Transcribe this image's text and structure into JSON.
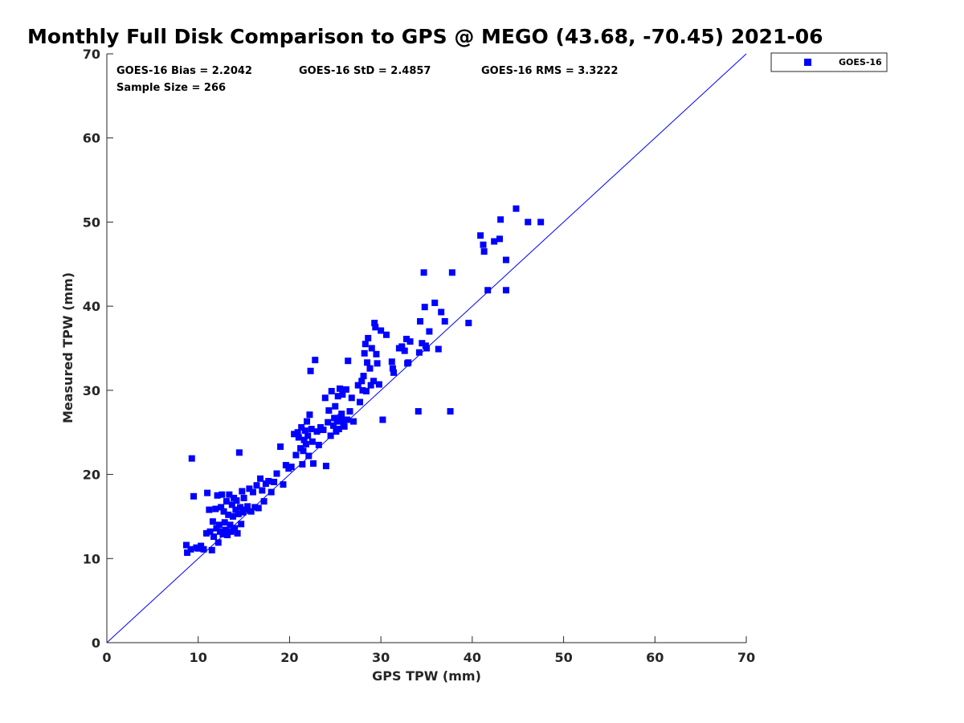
{
  "chart_data": {
    "type": "scatter",
    "title": "Monthly Full Disk Comparison to GPS @ MEGO (43.68, -70.45) 2021-06",
    "xlabel": "GPS TPW (mm)",
    "ylabel": "Measured TPW (mm)",
    "xlim": [
      0,
      70
    ],
    "ylim": [
      0,
      70
    ],
    "xticks": [
      0,
      10,
      20,
      30,
      40,
      50,
      60,
      70
    ],
    "yticks": [
      0,
      10,
      20,
      30,
      40,
      50,
      60,
      70
    ],
    "grid": false,
    "legend_position": "outside-top-right",
    "reference_line": {
      "type": "one-to-one",
      "color": "#0000ff"
    },
    "stats": {
      "bias": "GOES-16 Bias = 2.2042",
      "std": "GOES-16 StD = 2.4857",
      "rms": "GOES-16 RMS = 3.3222",
      "sample": "Sample Size = 266"
    },
    "series": [
      {
        "name": "GOES-16",
        "color": "#0000ff",
        "marker": "square",
        "points": [
          [
            8.7,
            11.6
          ],
          [
            8.8,
            10.7
          ],
          [
            9.2,
            11.1
          ],
          [
            9.3,
            21.9
          ],
          [
            9.5,
            17.4
          ],
          [
            9.8,
            11.3
          ],
          [
            10.0,
            11.2
          ],
          [
            10.3,
            11.5
          ],
          [
            10.6,
            11.1
          ],
          [
            10.9,
            13.0
          ],
          [
            11.0,
            17.8
          ],
          [
            11.2,
            15.8
          ],
          [
            11.3,
            13.2
          ],
          [
            11.5,
            11.0
          ],
          [
            11.6,
            14.4
          ],
          [
            11.7,
            12.6
          ],
          [
            11.9,
            15.9
          ],
          [
            12.0,
            13.6
          ],
          [
            12.1,
            17.5
          ],
          [
            12.2,
            11.9
          ],
          [
            12.3,
            14.0
          ],
          [
            12.4,
            13.2
          ],
          [
            12.5,
            16.1
          ],
          [
            12.6,
            17.6
          ],
          [
            12.7,
            12.9
          ],
          [
            12.8,
            15.6
          ],
          [
            12.9,
            14.3
          ],
          [
            13.0,
            13.4
          ],
          [
            13.1,
            16.8
          ],
          [
            13.2,
            12.8
          ],
          [
            13.3,
            15.2
          ],
          [
            13.4,
            17.6
          ],
          [
            13.5,
            14.0
          ],
          [
            13.6,
            13.2
          ],
          [
            13.7,
            16.4
          ],
          [
            13.8,
            15.0
          ],
          [
            13.9,
            17.2
          ],
          [
            14.0,
            13.6
          ],
          [
            14.1,
            15.8
          ],
          [
            14.2,
            16.9
          ],
          [
            14.3,
            13.0
          ],
          [
            14.4,
            15.3
          ],
          [
            14.5,
            22.6
          ],
          [
            14.6,
            16.1
          ],
          [
            14.7,
            14.1
          ],
          [
            14.8,
            18.0
          ],
          [
            14.9,
            15.5
          ],
          [
            15.0,
            17.2
          ],
          [
            15.2,
            15.8
          ],
          [
            15.4,
            16.2
          ],
          [
            15.6,
            18.3
          ],
          [
            15.8,
            15.6
          ],
          [
            16.0,
            17.9
          ],
          [
            16.2,
            16.1
          ],
          [
            16.4,
            18.7
          ],
          [
            16.6,
            16.0
          ],
          [
            16.8,
            19.5
          ],
          [
            17.0,
            18.1
          ],
          [
            17.2,
            16.8
          ],
          [
            17.4,
            18.9
          ],
          [
            17.7,
            19.2
          ],
          [
            18.0,
            17.9
          ],
          [
            18.3,
            19.1
          ],
          [
            18.6,
            20.1
          ],
          [
            19.0,
            23.3
          ],
          [
            19.3,
            18.8
          ],
          [
            19.6,
            21.1
          ],
          [
            19.9,
            20.7
          ],
          [
            20.2,
            20.9
          ],
          [
            20.5,
            24.8
          ],
          [
            20.7,
            22.3
          ],
          [
            20.9,
            25.0
          ],
          [
            21.0,
            24.4
          ],
          [
            21.2,
            23.1
          ],
          [
            21.3,
            25.6
          ],
          [
            21.4,
            21.2
          ],
          [
            21.5,
            22.8
          ],
          [
            21.6,
            24.1
          ],
          [
            21.7,
            25.2
          ],
          [
            21.8,
            23.6
          ],
          [
            21.9,
            26.3
          ],
          [
            22.0,
            24.6
          ],
          [
            22.1,
            22.2
          ],
          [
            22.2,
            27.1
          ],
          [
            22.3,
            32.3
          ],
          [
            22.4,
            25.4
          ],
          [
            22.5,
            23.9
          ],
          [
            22.6,
            21.3
          ],
          [
            22.8,
            33.6
          ],
          [
            23.0,
            25.1
          ],
          [
            23.2,
            23.5
          ],
          [
            23.4,
            25.6
          ],
          [
            23.7,
            25.3
          ],
          [
            23.9,
            29.1
          ],
          [
            24.0,
            21.0
          ],
          [
            24.2,
            26.2
          ],
          [
            24.3,
            27.6
          ],
          [
            24.5,
            24.6
          ],
          [
            24.6,
            29.9
          ],
          [
            24.8,
            25.8
          ],
          [
            24.9,
            26.7
          ],
          [
            25.0,
            28.1
          ],
          [
            25.1,
            25.1
          ],
          [
            25.2,
            26.3
          ],
          [
            25.3,
            29.3
          ],
          [
            25.4,
            25.4
          ],
          [
            25.5,
            30.2
          ],
          [
            25.6,
            26.8
          ],
          [
            25.7,
            27.2
          ],
          [
            25.8,
            29.5
          ],
          [
            25.9,
            26.1
          ],
          [
            26.0,
            25.7
          ],
          [
            26.2,
            30.1
          ],
          [
            26.3,
            26.5
          ],
          [
            26.4,
            33.5
          ],
          [
            26.6,
            27.5
          ],
          [
            26.8,
            29.1
          ],
          [
            27.0,
            26.3
          ],
          [
            27.5,
            30.6
          ],
          [
            27.7,
            28.6
          ],
          [
            27.9,
            31.1
          ],
          [
            28.0,
            30.0
          ],
          [
            28.1,
            31.7
          ],
          [
            28.2,
            34.4
          ],
          [
            28.3,
            35.5
          ],
          [
            28.4,
            29.9
          ],
          [
            28.5,
            33.3
          ],
          [
            28.6,
            36.2
          ],
          [
            28.8,
            32.6
          ],
          [
            28.9,
            30.6
          ],
          [
            29.0,
            35.0
          ],
          [
            29.2,
            31.1
          ],
          [
            29.3,
            38.0
          ],
          [
            29.4,
            37.5
          ],
          [
            29.5,
            34.3
          ],
          [
            29.6,
            33.2
          ],
          [
            29.8,
            30.7
          ],
          [
            30.0,
            37.1
          ],
          [
            30.2,
            26.5
          ],
          [
            30.6,
            36.6
          ],
          [
            31.2,
            33.4
          ],
          [
            31.3,
            32.6
          ],
          [
            31.4,
            32.1
          ],
          [
            32.0,
            35.0
          ],
          [
            32.3,
            35.2
          ],
          [
            32.6,
            34.7
          ],
          [
            32.8,
            36.1
          ],
          [
            32.9,
            33.2
          ],
          [
            33.0,
            33.3
          ],
          [
            33.2,
            35.8
          ],
          [
            34.1,
            27.5
          ],
          [
            34.2,
            34.5
          ],
          [
            34.3,
            38.2
          ],
          [
            34.5,
            35.6
          ],
          [
            34.7,
            44.0
          ],
          [
            34.8,
            39.9
          ],
          [
            34.9,
            35.3
          ],
          [
            35.0,
            35.0
          ],
          [
            35.3,
            37.0
          ],
          [
            35.9,
            40.4
          ],
          [
            36.3,
            34.9
          ],
          [
            36.6,
            39.3
          ],
          [
            37.0,
            38.2
          ],
          [
            37.6,
            27.5
          ],
          [
            37.8,
            44.0
          ],
          [
            39.6,
            38.0
          ],
          [
            40.9,
            48.4
          ],
          [
            41.2,
            47.3
          ],
          [
            41.3,
            46.5
          ],
          [
            41.7,
            41.9
          ],
          [
            42.4,
            47.7
          ],
          [
            43.0,
            48.0
          ],
          [
            43.1,
            50.3
          ],
          [
            43.7,
            41.9
          ],
          [
            43.7,
            45.5
          ],
          [
            44.8,
            51.6
          ],
          [
            46.1,
            50.0
          ],
          [
            47.5,
            50.0
          ]
        ]
      }
    ]
  }
}
